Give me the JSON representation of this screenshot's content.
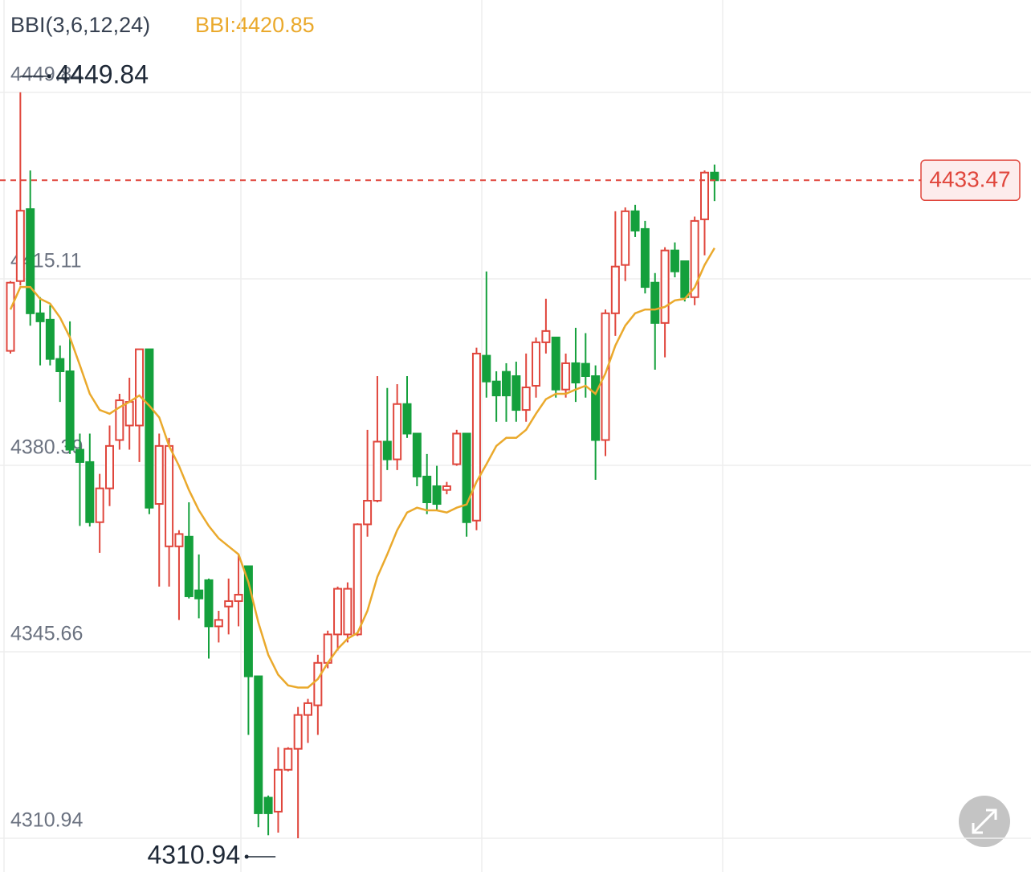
{
  "chart_data": {
    "type": "candlestick",
    "indicator_title": "BBI(3,6,12,24)",
    "indicator_readout": "BBI:4420.85",
    "up_color": "#e0463c",
    "down_color": "#14a03c",
    "open": [
      4401.7,
      4414.7,
      4428.1,
      4408.7,
      4407.5,
      4400.2,
      4397.9,
      4383.3,
      4381.0,
      4369.8,
      4376.1,
      4385.1,
      4387.8,
      4387.8,
      4402.0,
      4373.2,
      4365.3,
      4365.3,
      4367.1,
      4357.1,
      4359.0,
      4350.4,
      4354.1,
      4355.1,
      4361.6,
      4341.1,
      4318.5,
      4315.9,
      4323.7,
      4327.6,
      4333.9,
      4335.7,
      4343.6,
      4348.9,
      4348.9,
      4348.9,
      4369.4,
      4373.8,
      4384.8,
      4381.5,
      4391.8,
      4386.3,
      4378.3,
      4376.5,
      4375.8,
      4380.6,
      4386.3,
      4370.1,
      4400.8,
      4396.0,
      4397.8,
      4397.0,
      4390.7,
      4395.2,
      4403.3,
      4404.2,
      4394.5,
      4399.4,
      4399.3,
      4397.0,
      4385.1,
      4408.7,
      4417.7,
      4427.7,
      4424.4,
      4414.4,
      4406.9,
      4420.4,
      4418.4,
      4411.7,
      4426.2,
      4434.9
    ],
    "high": [
      4414.7,
      4449.84,
      4435.3,
      4411.7,
      4410.2,
      4402.7,
      4407.2,
      4386.3,
      4386.3,
      4378.8,
      4387.8,
      4393.7,
      4396.7,
      4402.0,
      4402.0,
      4386.3,
      4385.5,
      4368.3,
      4373.5,
      4363.8,
      4359.3,
      4353.3,
      4359.3,
      4363.8,
      4361.6,
      4341.1,
      4318.9,
      4327.9,
      4327.9,
      4335.4,
      4336.9,
      4345.1,
      4349.6,
      4357.8,
      4358.6,
      4369.6,
      4387.0,
      4397.0,
      4394.8,
      4395.5,
      4397.0,
      4386.3,
      4382.5,
      4380.3,
      4377.3,
      4387.0,
      4386.3,
      4402.3,
      4416.5,
      4397.9,
      4399.4,
      4399.7,
      4401.2,
      4404.2,
      4411.4,
      4404.2,
      4401.2,
      4406.0,
      4405.0,
      4399.0,
      4409.4,
      4427.7,
      4428.4,
      4428.9,
      4425.9,
      4416.2,
      4421.0,
      4421.9,
      4418.4,
      4426.7,
      4435.3,
      4436.4
    ],
    "low": [
      4401.2,
      4413.9,
      4406.4,
      4399.0,
      4399.0,
      4392.2,
      4382.5,
      4369.1,
      4369.0,
      4364.1,
      4372.8,
      4383.3,
      4383.3,
      4381.0,
      4371.3,
      4357.8,
      4357.8,
      4351.6,
      4355.6,
      4351.9,
      4344.4,
      4347.4,
      4348.9,
      4350.4,
      4330.2,
      4313.0,
      4311.5,
      4312.0,
      4323.4,
      4310.94,
      4328.7,
      4330.2,
      4342.6,
      4345.9,
      4347.4,
      4348.6,
      4367.1,
      4373.5,
      4379.5,
      4379.5,
      4385.5,
      4376.5,
      4371.3,
      4372.0,
      4375.0,
      4380.3,
      4367.1,
      4368.3,
      4393.0,
      4388.5,
      4388.5,
      4388.5,
      4388.5,
      4393.0,
      4401.2,
      4393.0,
      4393.0,
      4392.2,
      4393.0,
      4377.7,
      4382.1,
      4404.5,
      4414.7,
      4422.9,
      4412.4,
      4398.2,
      4400.5,
      4415.4,
      4410.9,
      4410.2,
      4419.5,
      4429.6
    ],
    "close": [
      4414.4,
      4427.8,
      4408.7,
      4407.2,
      4400.2,
      4397.9,
      4383.3,
      4381.0,
      4369.8,
      4376.1,
      4384.0,
      4392.5,
      4392.2,
      4402.0,
      4372.5,
      4384.0,
      4384.0,
      4367.6,
      4356.0,
      4355.6,
      4350.4,
      4351.6,
      4355.1,
      4356.3,
      4341.1,
      4315.6,
      4315.6,
      4323.7,
      4327.6,
      4333.9,
      4336.1,
      4343.6,
      4348.9,
      4357.4,
      4357.4,
      4369.4,
      4373.8,
      4384.8,
      4381.5,
      4391.8,
      4386.3,
      4378.3,
      4373.5,
      4373.2,
      4376.5,
      4386.3,
      4369.8,
      4401.2,
      4396.0,
      4393.4,
      4393.4,
      4390.7,
      4394.9,
      4403.3,
      4405.4,
      4394.5,
      4399.4,
      4395.8,
      4397.0,
      4385.1,
      4408.7,
      4417.4,
      4427.7,
      4424.1,
      4413.6,
      4406.9,
      4420.4,
      4416.5,
      4411.7,
      4425.9,
      4434.9,
      4433.47
    ],
    "bbi": {
      "color": "#eaa92c",
      "values": [
        4409.4,
        4413.6,
        4413.6,
        4411.4,
        4410.5,
        4407.9,
        4404.2,
        4399.0,
        4393.7,
        4390.7,
        4390.0,
        4391.2,
        4392.2,
        4393.4,
        4391.5,
        4389.3,
        4384.0,
        4380.3,
        4375.8,
        4372.0,
        4369.1,
        4366.8,
        4365.3,
        4363.8,
        4358.6,
        4351.1,
        4345.1,
        4341.4,
        4339.4,
        4339.0,
        4339.0,
        4340.6,
        4343.6,
        4346.2,
        4348.1,
        4349.2,
        4353.3,
        4359.6,
        4363.8,
        4368.3,
        4371.6,
        4372.5,
        4372.0,
        4372.0,
        4371.6,
        4372.5,
        4373.1,
        4377.3,
        4380.6,
        4384.0,
        4385.5,
        4385.5,
        4387.0,
        4390.0,
        4392.7,
        4393.7,
        4393.7,
        4394.5,
        4395.2,
        4393.7,
        4397.5,
        4402.7,
        4406.4,
        4408.7,
        4409.4,
        4409.4,
        4409.9,
        4411.1,
        4411.4,
        4413.5,
        4417.7,
        4420.85
      ]
    },
    "ylim": [
      4304.66,
      4467.04
    ],
    "yticks": [
      4449.84,
      4415.11,
      4380.39,
      4345.66,
      4310.94
    ],
    "grid": true,
    "high_marker": 4449.84,
    "low_marker": 4310.94,
    "last_price": 4433.47
  }
}
